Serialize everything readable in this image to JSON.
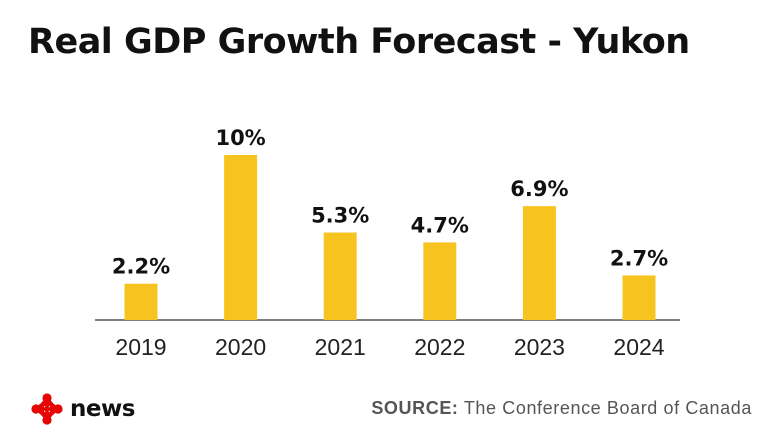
{
  "header": {
    "title": "Real GDP Growth Forecast - Yukon"
  },
  "chart_data": {
    "type": "bar",
    "categories": [
      "2019",
      "2020",
      "2021",
      "2022",
      "2023",
      "2024"
    ],
    "values": [
      2.2,
      10,
      5.3,
      4.7,
      6.9,
      2.7
    ],
    "value_labels": [
      "2.2%",
      "10%",
      "5.3%",
      "4.7%",
      "6.9%",
      "2.7%"
    ],
    "title": "Real GDP Growth Forecast - Yukon",
    "xlabel": "",
    "ylabel": "",
    "ylim": [
      0,
      10
    ],
    "grid": false,
    "bar_color": "#F7C41F",
    "baseline_color": "#333333"
  },
  "footer": {
    "logo_text": "news",
    "logo_icon": "cbc-gem-icon",
    "logo_color": "#E60505",
    "source_prefix": "SOURCE:",
    "source_text": "The Conference Board of Canada"
  }
}
